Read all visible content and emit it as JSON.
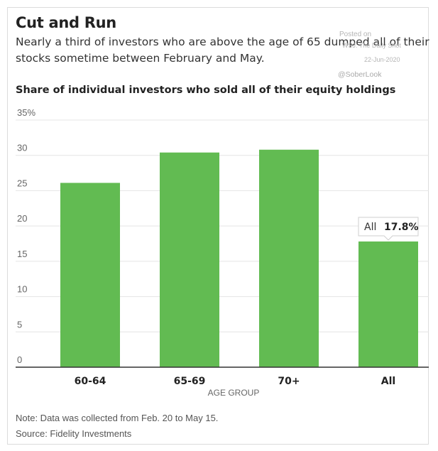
{
  "header": {
    "title": "Cut and Run",
    "subtitle": "Nearly a third of investors who are above the age of 65 dumped all of their stocks sometime between February and May."
  },
  "watermark": {
    "line1": "Posted on",
    "line2": "WSJ: The Daily Shot",
    "line3": "22-Jun-2020",
    "handle": "@SoberLook"
  },
  "chart_data": {
    "type": "bar",
    "title": "Share of individual investors who sold all of their equity holdings",
    "xlabel": "AGE GROUP",
    "ylabel": "",
    "categories": [
      "60-64",
      "65-69",
      "70+",
      "All"
    ],
    "values": [
      26.1,
      30.4,
      30.8,
      17.8
    ],
    "ylim": [
      0,
      35
    ],
    "yticks": [
      "0",
      "5",
      "10",
      "15",
      "20",
      "25",
      "30",
      "35%"
    ],
    "grid": true,
    "bar_color": "#62bb52",
    "annotation": {
      "category": "All",
      "label": "All",
      "value_text": "17.8%"
    }
  },
  "footer": {
    "note": "Note: Data was collected from Feb. 20 to May 15.",
    "source": "Source: Fidelity Investments"
  }
}
